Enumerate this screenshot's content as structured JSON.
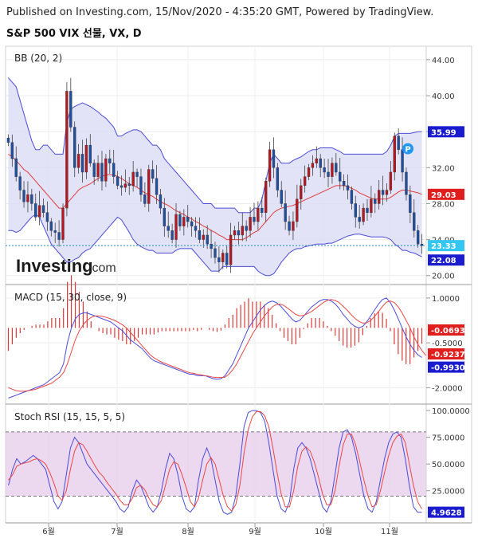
{
  "header": {
    "published": "Published on Investing.com, 15/Nov/2020 - 4:35:20 GMT, Powered by TradingView.",
    "symbol": "S&P 500 VIX 선물, VX, D"
  },
  "watermark": {
    "brand": "Investing",
    "suffix": ".com"
  },
  "colors": {
    "up": "#ffffff",
    "down": "#1f4fa0",
    "bull_fill": "#1f4fa0",
    "bear_fill": "#b8171f",
    "bb_band": "#4b4bd8",
    "bb_mid": "#e03b3b",
    "bb_fill": "#dcdcf5",
    "macd": "#4b4bd8",
    "signal": "#e84848",
    "hist": "#d63a3a",
    "stoch_k": "#4b4bd8",
    "stoch_d": "#e84848",
    "stoch_band": "#e6cce9"
  },
  "chart_data": [
    {
      "type": "candlestick",
      "title": "BB (20, 2)",
      "x_labels": [
        "6월",
        "7월",
        "8월",
        "9월",
        "10월",
        "11월"
      ],
      "y_ticks": [
        "44.00",
        "40.00",
        "36.00",
        "32.00",
        "28.00",
        "24.00",
        "20.00"
      ],
      "ylim": [
        19,
        45.5
      ],
      "last_price": 23.33,
      "bb_upper_last": 35.99,
      "bb_mid_last": 29.03,
      "bb_lower_last": 22.08,
      "badges": [
        "35.99",
        "29.03",
        "23.33",
        "22.08"
      ],
      "marker": "P",
      "close": [
        34.8,
        33.0,
        31.0,
        29.5,
        28.2,
        29.0,
        28.0,
        26.5,
        27.8,
        27.0,
        26.0,
        25.0,
        24.8,
        24.0,
        27.5,
        40.5,
        36.5,
        32.0,
        33.5,
        31.5,
        34.5,
        32.5,
        31.0,
        32.5,
        30.5,
        33.0,
        32.5,
        31.0,
        30.0,
        29.8,
        30.2,
        30.0,
        31.5,
        31.0,
        29.0,
        28.0,
        31.8,
        30.8,
        29.0,
        27.5,
        25.5,
        25.0,
        24.0,
        26.8,
        25.5,
        26.5,
        26.0,
        25.5,
        25.0,
        24.0,
        24.5,
        23.5,
        23.0,
        22.0,
        21.5,
        22.5,
        21.2,
        24.5,
        25.0,
        24.5,
        25.5,
        25.0,
        26.5,
        26.0,
        27.5,
        27.0,
        30.5,
        34.0,
        32.0,
        29.5,
        28.0,
        26.0,
        25.0,
        26.0,
        28.5,
        30.0,
        31.0,
        32.0,
        32.5,
        33.0,
        32.0,
        31.5,
        31.0,
        32.5,
        31.5,
        30.5,
        30.0,
        29.5,
        28.0,
        26.5,
        26.0,
        27.5,
        27.0,
        28.5,
        28.0,
        29.5,
        29.0,
        29.5,
        31.5,
        35.5,
        34.0,
        31.5,
        29.0,
        27.0,
        25.0,
        23.5,
        23.33
      ],
      "bb_upper": [
        42.0,
        41.5,
        41.0,
        39.5,
        38.0,
        36.5,
        35.0,
        34.0,
        34.0,
        34.5,
        34.5,
        34.0,
        33.5,
        33.5,
        33.5,
        37.0,
        38.5,
        38.8,
        39.0,
        39.2,
        39.0,
        38.8,
        38.5,
        38.2,
        37.8,
        37.5,
        37.0,
        36.5,
        35.5,
        35.5,
        35.8,
        36.0,
        36.2,
        36.2,
        36.0,
        35.5,
        35.0,
        34.5,
        34.5,
        34.0,
        33.0,
        32.5,
        32.0,
        31.5,
        31.0,
        30.5,
        30.0,
        29.5,
        29.0,
        28.5,
        28.0,
        28.0,
        28.0,
        27.5,
        27.5,
        27.5,
        27.5,
        27.5,
        27.5,
        27.0,
        27.0,
        27.0,
        27.0,
        27.5,
        27.5,
        28.5,
        30.5,
        32.5,
        33.5,
        33.0,
        32.5,
        32.5,
        32.5,
        32.8,
        33.0,
        33.2,
        33.5,
        33.8,
        34.0,
        34.0,
        34.2,
        34.2,
        34.2,
        34.2,
        34.0,
        33.8,
        33.5,
        33.5,
        33.5,
        33.5,
        33.5,
        33.5,
        33.5,
        33.5,
        33.5,
        33.5,
        33.5,
        33.8,
        34.5,
        35.5,
        35.8,
        35.8,
        35.8,
        35.8,
        35.9,
        36.0,
        35.99
      ],
      "bb_mid": [
        33.5,
        33.2,
        32.8,
        32.3,
        31.8,
        31.5,
        31.0,
        30.5,
        30.0,
        29.5,
        29.0,
        28.5,
        28.0,
        27.5,
        27.5,
        28.0,
        28.5,
        29.0,
        29.5,
        29.8,
        30.0,
        30.2,
        30.5,
        30.8,
        31.0,
        31.2,
        31.2,
        31.2,
        31.0,
        30.8,
        30.5,
        30.2,
        30.0,
        29.8,
        29.5,
        29.2,
        29.0,
        28.8,
        28.5,
        28.2,
        28.0,
        27.8,
        27.5,
        27.2,
        27.0,
        26.8,
        26.5,
        26.3,
        26.0,
        25.8,
        25.5,
        25.3,
        25.0,
        24.8,
        24.5,
        24.3,
        24.0,
        24.0,
        24.0,
        24.0,
        24.0,
        24.2,
        24.5,
        24.8,
        25.0,
        25.5,
        26.0,
        26.5,
        27.0,
        27.3,
        27.5,
        27.6,
        27.7,
        27.8,
        28.0,
        28.2,
        28.4,
        28.6,
        28.8,
        29.0,
        29.2,
        29.4,
        29.6,
        29.8,
        30.0,
        30.0,
        30.0,
        29.9,
        29.7,
        29.5,
        29.2,
        29.0,
        28.8,
        28.6,
        28.5,
        28.5,
        28.5,
        28.5,
        28.7,
        29.0,
        29.3,
        29.5,
        29.5,
        29.4,
        29.3,
        29.2,
        29.03
      ],
      "bb_lower": [
        25.0,
        25.0,
        24.8,
        25.0,
        25.5,
        26.0,
        26.5,
        26.8,
        26.5,
        25.5,
        24.5,
        23.5,
        23.0,
        22.5,
        22.0,
        21.5,
        21.5,
        21.8,
        22.0,
        22.5,
        22.8,
        23.0,
        23.5,
        24.0,
        24.5,
        25.0,
        25.5,
        26.0,
        26.5,
        26.2,
        25.5,
        24.8,
        24.0,
        23.5,
        23.2,
        23.0,
        22.8,
        22.8,
        22.5,
        22.5,
        22.5,
        22.5,
        22.5,
        22.8,
        23.0,
        23.0,
        23.0,
        23.0,
        22.5,
        22.0,
        21.5,
        21.0,
        20.5,
        20.5,
        20.5,
        21.0,
        21.0,
        21.0,
        21.0,
        21.0,
        21.0,
        21.0,
        21.0,
        21.0,
        20.5,
        20.2,
        20.0,
        20.0,
        20.2,
        20.8,
        21.5,
        22.0,
        22.5,
        22.8,
        23.0,
        23.0,
        23.2,
        23.3,
        23.4,
        23.5,
        23.5,
        23.5,
        23.6,
        23.6,
        23.8,
        24.0,
        24.2,
        24.4,
        24.5,
        24.6,
        24.6,
        24.5,
        24.4,
        24.3,
        24.3,
        24.3,
        24.3,
        24.2,
        24.0,
        23.5,
        23.2,
        22.8,
        22.8,
        22.6,
        22.5,
        22.3,
        22.08
      ]
    },
    {
      "type": "line",
      "title": "MACD (15, 30, close, 9)",
      "y_ticks": [
        "1.0000",
        "-0.5000",
        "-2.0000"
      ],
      "ylim": [
        -2.55,
        1.45
      ],
      "badges": [
        "-0.0693",
        "-0.9237",
        "-0.9930"
      ],
      "macd": [
        -2.35,
        -2.3,
        -2.25,
        -2.2,
        -2.15,
        -2.1,
        -2.05,
        -2.0,
        -1.95,
        -1.9,
        -1.8,
        -1.7,
        -1.6,
        -1.5,
        -1.2,
        -0.5,
        0.0,
        0.3,
        0.45,
        0.5,
        0.5,
        0.45,
        0.4,
        0.35,
        0.3,
        0.25,
        0.2,
        0.1,
        0.0,
        -0.1,
        -0.25,
        -0.4,
        -0.5,
        -0.6,
        -0.7,
        -0.85,
        -1.0,
        -1.1,
        -1.15,
        -1.2,
        -1.25,
        -1.3,
        -1.35,
        -1.4,
        -1.45,
        -1.5,
        -1.55,
        -1.55,
        -1.6,
        -1.6,
        -1.6,
        -1.65,
        -1.7,
        -1.72,
        -1.7,
        -1.6,
        -1.4,
        -1.2,
        -0.9,
        -0.6,
        -0.3,
        0.0,
        0.2,
        0.4,
        0.6,
        0.75,
        0.85,
        0.9,
        0.85,
        0.75,
        0.6,
        0.45,
        0.3,
        0.2,
        0.25,
        0.4,
        0.55,
        0.7,
        0.8,
        0.9,
        0.95,
        0.95,
        0.9,
        0.8,
        0.65,
        0.45,
        0.3,
        0.15,
        0.05,
        0.0,
        0.05,
        0.2,
        0.4,
        0.6,
        0.8,
        0.95,
        1.0,
        0.85,
        0.6,
        0.3,
        0.0,
        -0.3,
        -0.55,
        -0.75,
        -0.9,
        -0.99
      ],
      "signal": [
        -2.0,
        -2.05,
        -2.1,
        -2.12,
        -2.12,
        -2.1,
        -2.08,
        -2.05,
        -2.0,
        -1.95,
        -1.9,
        -1.85,
        -1.75,
        -1.65,
        -1.5,
        -1.2,
        -0.8,
        -0.4,
        -0.1,
        0.1,
        0.25,
        0.35,
        0.4,
        0.4,
        0.38,
        0.35,
        0.3,
        0.25,
        0.18,
        0.1,
        0.0,
        -0.15,
        -0.3,
        -0.45,
        -0.6,
        -0.75,
        -0.9,
        -1.0,
        -1.08,
        -1.15,
        -1.2,
        -1.25,
        -1.3,
        -1.35,
        -1.4,
        -1.45,
        -1.5,
        -1.52,
        -1.55,
        -1.57,
        -1.6,
        -1.62,
        -1.65,
        -1.66,
        -1.66,
        -1.65,
        -1.55,
        -1.4,
        -1.2,
        -0.95,
        -0.7,
        -0.45,
        -0.2,
        0.0,
        0.2,
        0.4,
        0.55,
        0.7,
        0.78,
        0.8,
        0.75,
        0.65,
        0.55,
        0.45,
        0.4,
        0.42,
        0.48,
        0.55,
        0.65,
        0.75,
        0.85,
        0.92,
        0.95,
        0.92,
        0.85,
        0.72,
        0.6,
        0.45,
        0.32,
        0.22,
        0.16,
        0.17,
        0.25,
        0.38,
        0.55,
        0.72,
        0.86,
        0.9,
        0.85,
        0.7,
        0.5,
        0.25,
        0.0,
        -0.3,
        -0.55,
        -0.75,
        -0.92
      ]
    },
    {
      "type": "line",
      "title": "Stoch RSI (15, 15, 5, 5)",
      "y_ticks": [
        "100.0000",
        "75.0000",
        "50.0000",
        "25.0000"
      ],
      "ylim": [
        -5,
        106
      ],
      "band": [
        20,
        80
      ],
      "badges": [
        "4.9628"
      ],
      "k": [
        30,
        45,
        55,
        50,
        52,
        55,
        58,
        55,
        50,
        45,
        30,
        15,
        8,
        15,
        40,
        65,
        75,
        70,
        60,
        50,
        45,
        40,
        35,
        30,
        25,
        20,
        15,
        8,
        5,
        10,
        25,
        35,
        30,
        20,
        10,
        5,
        10,
        25,
        45,
        60,
        55,
        40,
        20,
        8,
        5,
        10,
        35,
        55,
        65,
        55,
        35,
        15,
        5,
        3,
        5,
        20,
        50,
        85,
        98,
        100,
        100,
        98,
        90,
        70,
        45,
        20,
        8,
        5,
        15,
        45,
        65,
        70,
        65,
        55,
        40,
        25,
        10,
        5,
        15,
        40,
        65,
        80,
        82,
        75,
        60,
        40,
        20,
        8,
        5,
        15,
        35,
        55,
        70,
        78,
        80,
        75,
        55,
        30,
        10,
        5,
        4.96
      ],
      "d": [
        35,
        40,
        48,
        50,
        51,
        52,
        54,
        55,
        53,
        50,
        42,
        32,
        20,
        16,
        25,
        45,
        62,
        70,
        68,
        62,
        55,
        48,
        42,
        38,
        32,
        27,
        22,
        16,
        12,
        12,
        18,
        28,
        30,
        26,
        18,
        12,
        10,
        16,
        30,
        45,
        52,
        50,
        40,
        28,
        15,
        10,
        18,
        35,
        50,
        56,
        50,
        35,
        20,
        10,
        6,
        12,
        30,
        60,
        82,
        94,
        99,
        99,
        95,
        85,
        65,
        42,
        22,
        10,
        10,
        25,
        48,
        62,
        66,
        62,
        52,
        38,
        22,
        12,
        12,
        25,
        48,
        68,
        78,
        78,
        68,
        52,
        35,
        20,
        10,
        12,
        25,
        42,
        58,
        70,
        76,
        78,
        70,
        50,
        30,
        15,
        8
      ]
    }
  ]
}
